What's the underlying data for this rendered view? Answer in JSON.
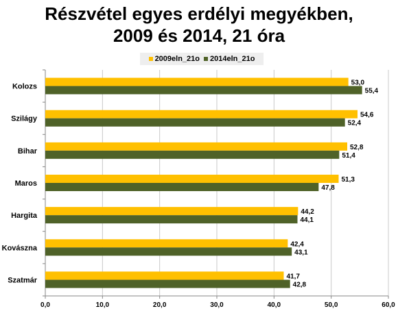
{
  "title_line1": "Részvétel egyes erdélyi megyékben,",
  "title_line2": "2009 és 2014, 21 óra",
  "colors": {
    "s2009": "#ffc000",
    "s2014": "#4f6228",
    "grid": "#c8c8c8",
    "axis": "#868686",
    "legend_bg": "#eeeeee"
  },
  "chart_data": {
    "type": "bar",
    "orientation": "horizontal",
    "categories": [
      "Kolozs",
      "Szilágy",
      "Bihar",
      "Maros",
      "Hargita",
      "Kovászna",
      "Szatmár"
    ],
    "series": [
      {
        "name": "2009eln_21o",
        "values": [
          53.0,
          54.6,
          52.8,
          51.3,
          44.2,
          42.4,
          41.7
        ],
        "labels": [
          "53,0",
          "54,6",
          "52,8",
          "51,3",
          "44,2",
          "42,4",
          "41,7"
        ]
      },
      {
        "name": "2014eln_21o",
        "values": [
          55.4,
          52.4,
          51.4,
          47.8,
          44.1,
          43.1,
          42.8
        ],
        "labels": [
          "55,4",
          "52,4",
          "51,4",
          "47,8",
          "44,1",
          "43,1",
          "42,8"
        ]
      }
    ],
    "xlim": [
      0,
      60
    ],
    "x_ticks": [
      0,
      10,
      20,
      30,
      40,
      50,
      60
    ],
    "x_tick_labels": [
      "0,0",
      "10,0",
      "20,0",
      "30,0",
      "40,0",
      "50,0",
      "60,0"
    ],
    "grid": true,
    "legend_position": "top"
  }
}
